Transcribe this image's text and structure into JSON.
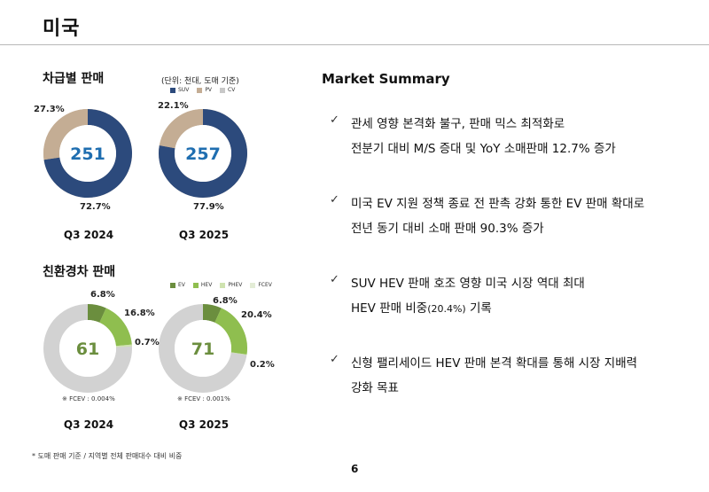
{
  "page": {
    "title": "미국",
    "page_number": "6",
    "footnote": "* 도매 판매 기준 / 지역별 전체 판매대수 대비 비중"
  },
  "segment_sales": {
    "title": "차급별 판매",
    "unit": "(단위: 천대, 도매 기준)",
    "legend": [
      "SUV",
      "PV",
      "CV"
    ],
    "colors": {
      "SUV": "#2c4a7c",
      "PV": "#c4ad94",
      "CV": "#c8c8c8"
    }
  },
  "eco_sales": {
    "title": "친환경차 판매",
    "legend": [
      "EV",
      "HEV",
      "PHEV",
      "FCEV"
    ],
    "colors": {
      "EV": "#6b8e3e",
      "HEV": "#8fbe4f",
      "PHEV": "#cfe3b0",
      "FCEV": "#e3ecd6",
      "rest": "#d2d2d2"
    }
  },
  "chart_data": [
    {
      "type": "pie",
      "title": "차급별 판매",
      "period": "Q3 2024",
      "total": "251",
      "series": [
        {
          "name": "SUV",
          "value": 72.7,
          "label": "72.7%"
        },
        {
          "name": "PV",
          "value": 27.3,
          "label": "27.3%"
        }
      ]
    },
    {
      "type": "pie",
      "title": "차급별 판매",
      "period": "Q3 2025",
      "total": "257",
      "series": [
        {
          "name": "SUV",
          "value": 77.9,
          "label": "77.9%"
        },
        {
          "name": "PV",
          "value": 22.1,
          "label": "22.1%"
        }
      ]
    },
    {
      "type": "pie",
      "title": "친환경차 판매",
      "period": "Q3 2024",
      "total": "61",
      "fcev_note": "※ FCEV : 0.004%",
      "series": [
        {
          "name": "EV",
          "value": 6.8,
          "label": "6.8%"
        },
        {
          "name": "HEV",
          "value": 16.8,
          "label": "16.8%"
        },
        {
          "name": "PHEV",
          "value": 0.7,
          "label": "0.7%"
        },
        {
          "name": "FCEV",
          "value": 0.004
        }
      ]
    },
    {
      "type": "pie",
      "title": "친환경차 판매",
      "period": "Q3 2025",
      "total": "71",
      "fcev_note": "※ FCEV : 0.001%",
      "series": [
        {
          "name": "EV",
          "value": 6.8,
          "label": "6.8%"
        },
        {
          "name": "HEV",
          "value": 20.4,
          "label": "20.4%"
        },
        {
          "name": "PHEV",
          "value": 0.2,
          "label": "0.2%"
        },
        {
          "name": "FCEV",
          "value": 0.001
        }
      ]
    }
  ],
  "market_summary": {
    "title": "Market Summary",
    "bullets": [
      {
        "line1": "관세 영향 본격화 불구, 판매 믹스 최적화로",
        "line2": "전분기 대비 M/S 증대 및 YoY 소매판매 12.7% 증가"
      },
      {
        "line1": "미국 EV 지원 정책 종료 전 판촉 강화 통한 EV 판매 확대로",
        "line2": "전년 동기 대비 소매 판매 90.3% 증가"
      },
      {
        "line1": "SUV HEV 판매 호조 영향 미국 시장 역대 최대",
        "line2a": "HEV 판매 비중",
        "line2b": "(20.4%)",
        "line2c": " 기록"
      },
      {
        "line1": "신형 팰리세이드 HEV 판매 본격 확대를 통해 시장 지배력",
        "line2": "강화 목표"
      }
    ]
  }
}
